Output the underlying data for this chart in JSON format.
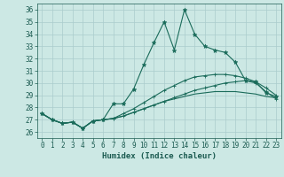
{
  "xlabel": "Humidex (Indice chaleur)",
  "xlim": [
    -0.5,
    23.5
  ],
  "ylim": [
    25.5,
    36.5
  ],
  "yticks": [
    26,
    27,
    28,
    29,
    30,
    31,
    32,
    33,
    34,
    35,
    36
  ],
  "xticks": [
    0,
    1,
    2,
    3,
    4,
    5,
    6,
    7,
    8,
    9,
    10,
    11,
    12,
    13,
    14,
    15,
    16,
    17,
    18,
    19,
    20,
    21,
    22,
    23
  ],
  "background_color": "#cce8e4",
  "grid_color": "#aacccc",
  "line_color": "#1a6b5a",
  "line1_y": [
    27.5,
    27.0,
    26.7,
    26.8,
    26.3,
    26.9,
    27.0,
    28.3,
    28.3,
    29.5,
    31.5,
    33.3,
    35.0,
    32.7,
    36.0,
    34.0,
    33.0,
    32.7,
    32.5,
    31.7,
    30.2,
    30.1,
    29.2,
    28.9
  ],
  "line2_y": [
    27.5,
    27.0,
    26.7,
    26.8,
    26.3,
    26.9,
    27.0,
    27.1,
    27.5,
    27.9,
    28.4,
    28.9,
    29.4,
    29.8,
    30.2,
    30.5,
    30.6,
    30.7,
    30.7,
    30.6,
    30.4,
    30.1,
    29.6,
    29.0
  ],
  "line3_y": [
    27.5,
    27.0,
    26.7,
    26.8,
    26.3,
    26.9,
    27.0,
    27.1,
    27.3,
    27.6,
    27.9,
    28.2,
    28.5,
    28.7,
    28.9,
    29.1,
    29.2,
    29.3,
    29.3,
    29.3,
    29.2,
    29.1,
    28.9,
    28.8
  ],
  "line4_y": [
    27.5,
    27.0,
    26.7,
    26.8,
    26.3,
    26.9,
    27.0,
    27.1,
    27.3,
    27.6,
    27.9,
    28.2,
    28.5,
    28.8,
    29.1,
    29.4,
    29.6,
    29.8,
    30.0,
    30.1,
    30.2,
    30.0,
    29.3,
    28.7
  ],
  "font_color": "#1a5a50",
  "tick_fontsize": 5.5,
  "xlabel_fontsize": 6.5
}
